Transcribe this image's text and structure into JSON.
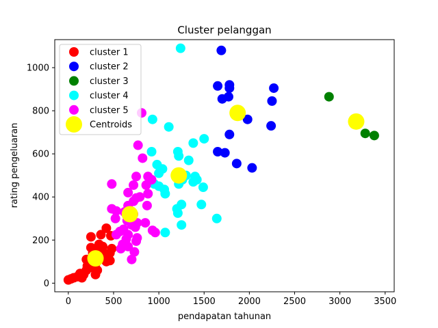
{
  "chart_data": {
    "type": "scatter",
    "title": "Cluster pelanggan",
    "xlabel": "pendapatan tahunan",
    "ylabel": "rating pengeluaran",
    "xlim": [
      -150,
      3600
    ],
    "ylim": [
      -40,
      1130
    ],
    "xticks": [
      0,
      500,
      1000,
      1500,
      2000,
      2500,
      3000,
      3500
    ],
    "yticks": [
      0,
      200,
      400,
      600,
      800,
      1000
    ],
    "grid": false,
    "legend_position": "top-left",
    "series": [
      {
        "name": "cluster 1",
        "color": "#ff0000",
        "points": [
          [
            0,
            15
          ],
          [
            30,
            20
          ],
          [
            60,
            25
          ],
          [
            100,
            30
          ],
          [
            130,
            45
          ],
          [
            150,
            25
          ],
          [
            170,
            40
          ],
          [
            200,
            60
          ],
          [
            210,
            80
          ],
          [
            240,
            100
          ],
          [
            260,
            120
          ],
          [
            280,
            70
          ],
          [
            300,
            90
          ],
          [
            320,
            110
          ],
          [
            340,
            130
          ],
          [
            360,
            150
          ],
          [
            380,
            170
          ],
          [
            400,
            130
          ],
          [
            420,
            100
          ],
          [
            440,
            120
          ],
          [
            460,
            140
          ],
          [
            480,
            160
          ],
          [
            300,
            40
          ],
          [
            320,
            60
          ],
          [
            250,
            165
          ],
          [
            270,
            140
          ],
          [
            340,
            180
          ],
          [
            360,
            225
          ],
          [
            420,
            255
          ],
          [
            470,
            220
          ],
          [
            250,
            215
          ],
          [
            430,
            110
          ],
          [
            460,
            105
          ],
          [
            350,
            160
          ],
          [
            390,
            140
          ],
          [
            200,
            110
          ]
        ]
      },
      {
        "name": "cluster 2",
        "color": "#0000ff",
        "points": [
          [
            1690,
            1080
          ],
          [
            1650,
            915
          ],
          [
            1780,
            905
          ],
          [
            1780,
            920
          ],
          [
            1770,
            865
          ],
          [
            1700,
            855
          ],
          [
            2270,
            905
          ],
          [
            2250,
            845
          ],
          [
            1980,
            760
          ],
          [
            2240,
            730
          ],
          [
            1780,
            690
          ],
          [
            1650,
            610
          ],
          [
            1730,
            605
          ],
          [
            1860,
            555
          ],
          [
            2030,
            535
          ]
        ]
      },
      {
        "name": "cluster 3",
        "color": "#008000",
        "points": [
          [
            2880,
            865
          ],
          [
            3280,
            695
          ],
          [
            3380,
            685
          ]
        ]
      },
      {
        "name": "cluster 4",
        "color": "#00ffff",
        "points": [
          [
            1240,
            1090
          ],
          [
            930,
            760
          ],
          [
            1110,
            725
          ],
          [
            1380,
            650
          ],
          [
            1500,
            670
          ],
          [
            920,
            610
          ],
          [
            1210,
            610
          ],
          [
            1220,
            590
          ],
          [
            1330,
            570
          ],
          [
            980,
            550
          ],
          [
            1040,
            530
          ],
          [
            1000,
            510
          ],
          [
            1300,
            500
          ],
          [
            1400,
            495
          ],
          [
            1260,
            480
          ],
          [
            1420,
            480
          ],
          [
            1380,
            470
          ],
          [
            1220,
            460
          ],
          [
            950,
            460
          ],
          [
            1000,
            450
          ],
          [
            1490,
            445
          ],
          [
            1060,
            435
          ],
          [
            1070,
            415
          ],
          [
            1470,
            365
          ],
          [
            1250,
            365
          ],
          [
            1200,
            345
          ],
          [
            1210,
            325
          ],
          [
            1640,
            300
          ],
          [
            1250,
            270
          ],
          [
            1070,
            235
          ]
        ]
      },
      {
        "name": "cluster 5",
        "color": "#ff00ff",
        "points": [
          [
            810,
            790
          ],
          [
            770,
            640
          ],
          [
            820,
            580
          ],
          [
            880,
            495
          ],
          [
            750,
            495
          ],
          [
            860,
            455
          ],
          [
            480,
            460
          ],
          [
            720,
            455
          ],
          [
            920,
            480
          ],
          [
            660,
            420
          ],
          [
            880,
            415
          ],
          [
            790,
            400
          ],
          [
            750,
            395
          ],
          [
            720,
            380
          ],
          [
            660,
            360
          ],
          [
            870,
            360
          ],
          [
            480,
            345
          ],
          [
            530,
            335
          ],
          [
            620,
            330
          ],
          [
            720,
            320
          ],
          [
            520,
            300
          ],
          [
            650,
            290
          ],
          [
            760,
            280
          ],
          [
            850,
            280
          ],
          [
            700,
            270
          ],
          [
            740,
            260
          ],
          [
            610,
            250
          ],
          [
            570,
            240
          ],
          [
            930,
            245
          ],
          [
            960,
            235
          ],
          [
            530,
            225
          ],
          [
            660,
            225
          ],
          [
            760,
            210
          ],
          [
            640,
            205
          ],
          [
            750,
            195
          ],
          [
            600,
            180
          ],
          [
            660,
            170
          ],
          [
            580,
            160
          ],
          [
            730,
            145
          ],
          [
            700,
            110
          ]
        ]
      }
    ],
    "centroids": {
      "name": "Centroids",
      "color": "#ffff00",
      "points": [
        [
          300,
          115
        ],
        [
          1870,
          790
        ],
        [
          3180,
          750
        ],
        [
          1220,
          500
        ],
        [
          680,
          320
        ]
      ]
    }
  }
}
